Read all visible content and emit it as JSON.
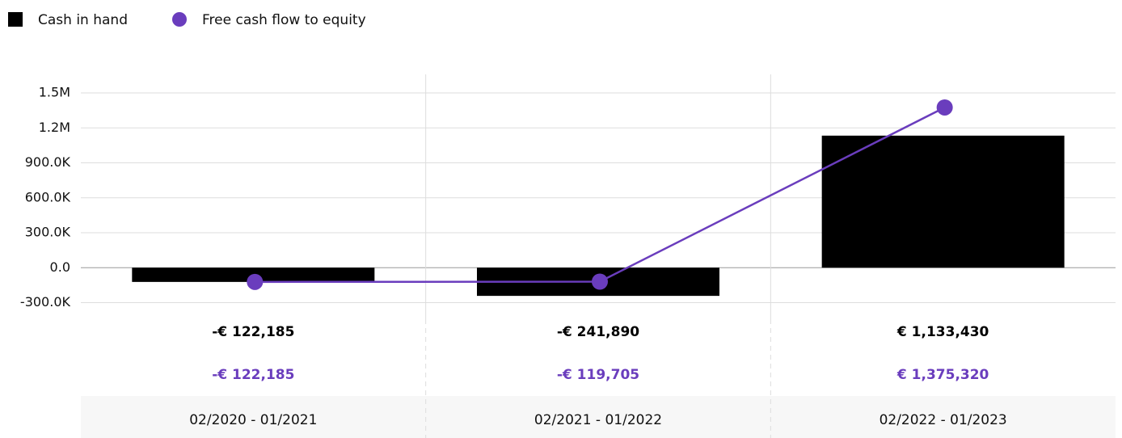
{
  "chart_data": {
    "type": "bar-line",
    "categories": [
      "02/2020 - 01/2021",
      "02/2021 - 01/2022",
      "02/2022 - 01/2023"
    ],
    "series": [
      {
        "name": "Cash in hand",
        "color": "#000000",
        "type": "bar",
        "values": [
          -122185,
          -241890,
          1133430
        ],
        "value_labels": [
          "-€ 122,185",
          "-€ 241,890",
          "€ 1,133,430"
        ]
      },
      {
        "name": "Free cash flow to equity",
        "color": "#6a3dbd",
        "type": "line",
        "values": [
          -122185,
          -119705,
          1375320
        ],
        "value_labels": [
          "-€ 122,185",
          "-€ 119,705",
          "€ 1,375,320"
        ]
      }
    ],
    "ylim": [
      -300000,
      1500000
    ],
    "yticks": [
      {
        "value": -300000,
        "label": "-300.0K"
      },
      {
        "value": 0,
        "label": "0.0"
      },
      {
        "value": 300000,
        "label": "300.0K"
      },
      {
        "value": 600000,
        "label": "600.0K"
      },
      {
        "value": 900000,
        "label": "900.0K"
      },
      {
        "value": 1200000,
        "label": "1.2M"
      },
      {
        "value": 1500000,
        "label": "1.5M"
      }
    ],
    "grid": true
  }
}
